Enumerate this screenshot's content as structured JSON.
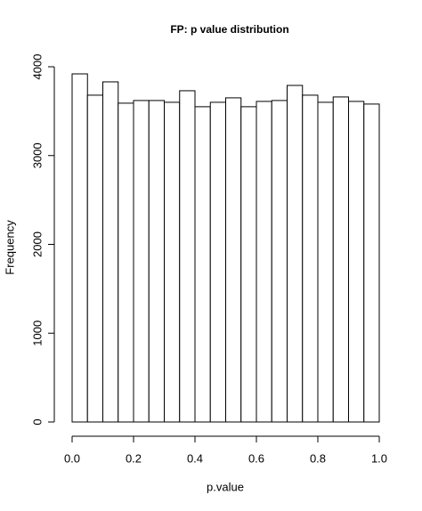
{
  "chart_data": {
    "type": "histogram",
    "title": "FP: p value distribution",
    "x_label": "p.value",
    "y_label": "Frequency",
    "bins": [
      0,
      0.05,
      0.1,
      0.15,
      0.2,
      0.25,
      0.3,
      0.35,
      0.4,
      0.45,
      0.5,
      0.55,
      0.6,
      0.65,
      0.7,
      0.75,
      0.8,
      0.85,
      0.9,
      0.95,
      1
    ],
    "values": [
      3920,
      3680,
      3830,
      3590,
      3620,
      3620,
      3600,
      3730,
      3550,
      3600,
      3650,
      3550,
      3610,
      3620,
      3790,
      3680,
      3600,
      3660,
      3610,
      3580
    ],
    "color": "#ffffff",
    "xlim": [
      0,
      1
    ],
    "ylim": [
      0,
      4000
    ],
    "xticks": [
      {
        "value": 0,
        "label": "0.0"
      },
      0.2,
      0.4,
      0.6,
      0.8,
      {
        "value": 1,
        "label": "1.0"
      }
    ],
    "yticks": [
      0,
      1000,
      2000,
      3000,
      4000
    ]
  }
}
